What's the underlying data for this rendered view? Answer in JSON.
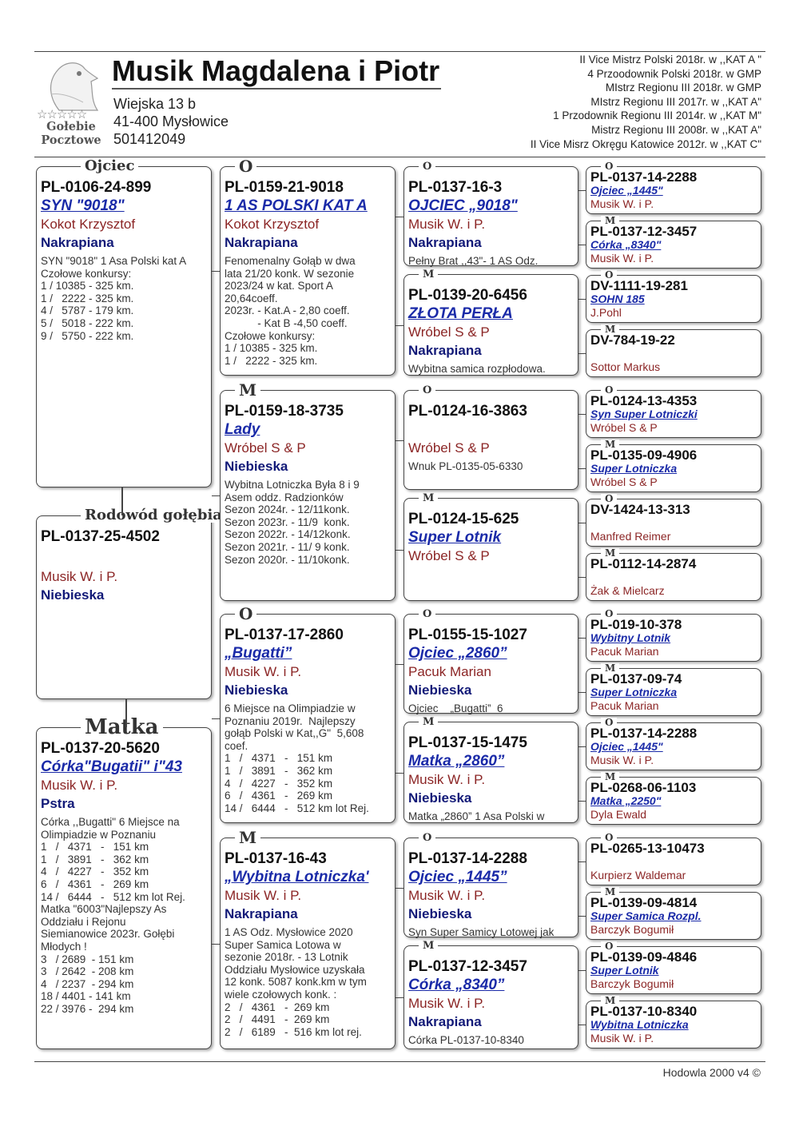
{
  "header": {
    "title": "Musik Magdalena i Piotr",
    "address_line1": "Wiejska 13 b",
    "address_line2": "41-400 Mysłowice",
    "phone": "501412049",
    "logo_text": [
      "Gołebie",
      "Pocztowe"
    ],
    "achievements": [
      "II Vice Mistrz Polski 2018r. w ,,KAT A \"",
      "4 Przoodownik Polski 2018r. w GMP",
      "MIstrz Regionu III 2018r. w GMP",
      "MIstrz Regionu III 2017r. w ,,KAT A\"",
      "1 Przodownik Regionu III 2014r. w ,,KAT M\"",
      "Mistrz Regionu III 2008r. w ,,KAT A\"",
      "II Vice Misrz Okręgu Katowice 2012r. w ,,KAT C\""
    ]
  },
  "pedigree": {
    "gen1": [
      {
        "label": "Ojciec",
        "ring": "PL-0106-24-899",
        "name": "SYN \"9018\"",
        "breeder": "Kokot Krzysztof",
        "color": "Nakrapiana",
        "notes": [
          "SYN \"9018\" 1 Asa Polski kat A",
          "Czołowe konkursy:",
          "1 / 10385 - 325 km.",
          "1 /   2222 - 325 km.",
          "4 /   5787 - 179 km.",
          "5 /   5018 - 222 km.",
          "9 /   5750 - 222 km."
        ]
      },
      {
        "label": "Rodowód gołębia",
        "ring": "PL-0137-25-4502",
        "name": "",
        "breeder": "Musik W. i P.",
        "color": "Niebieska",
        "notes": []
      },
      {
        "label": "Matka",
        "ring": "PL-0137-20-5620",
        "name": "Córka\"Bugatii\" i\"43",
        "breeder": "Musik W. i P.",
        "color": "Pstra",
        "notes": [
          "Córka ,,Bugatti\" 6 Miejsce na",
          "Olimpiadzie w Poznaniu",
          "1   /   4371   -   151 km",
          "1   /   3891   -   362 km",
          "4   /   4227   -   352 km",
          "6   /   4361   -   269 km",
          "14 /   6444   -   512 km lot Rej.",
          "Matka \"6003\"Najlepszy As",
          "Oddziału i Rejonu",
          "Siemianowice 2023r. Gołębi",
          "Młodych !",
          "3   / 2689  - 151 km",
          "3   / 2642  - 208 km",
          "4   / 2237  - 294 km",
          "18 / 4401 - 141 km",
          "22 / 3976 -  294 km"
        ]
      }
    ],
    "gen2": [
      {
        "label": "O",
        "ring": "PL-0159-21-9018",
        "name": "1 AS POLSKI KAT A",
        "breeder": "Kokot Krzysztof",
        "color": "Nakrapiana",
        "notes": [
          "Fenomenalny Gołąb w dwa",
          "lata 21/20 konk. W sezonie",
          "2023/24 w kat. Sport A",
          "20,64coeff.",
          "2023r. - Kat.A - 2,80 coeff.",
          "           - Kat B -4,50 coeff.",
          "Czołowe konkursy:",
          "1 / 10385 - 325 km.",
          "1 /   2222 - 325 km."
        ]
      },
      {
        "label": "M",
        "ring": "PL-0159-18-3735",
        "name": "Lady",
        "breeder": "Wróbel S & P",
        "color": "Niebieska",
        "notes": [
          "Wybitna Lotniczka Była 8 i 9",
          "Asem oddz. Radzionków",
          "Sezon 2024r. - 12/11konk.",
          "Sezon 2023r. - 11/9  konk.",
          "Sezon 2022r. - 14/12konk.",
          "Sezon 2021r. - 11/ 9 konk.",
          "Sezon 2020r. - 11/10konk."
        ]
      },
      {
        "label": "O",
        "ring": "PL-0137-17-2860",
        "name": "„Bugatti”",
        "breeder": "Musik W. i P.",
        "color": "Niebieska",
        "notes": [
          "6 Miejsce na Olimpiadzie w",
          "Poznaniu 2019r.  Najlepszy",
          "gołąb Polski w Kat,,G\"  5,608",
          "coef.",
          "1   /   4371   -   151 km",
          "1   /   3891   -   362 km",
          "4   /   4227   -   352 km",
          "6   /   4361   -   269 km",
          "14 /   6444   -   512 km lot Rej."
        ]
      },
      {
        "label": "M",
        "ring": "PL-0137-16-43",
        "name": "„Wybitna Lotniczka'",
        "breeder": "Musik W. i P.",
        "color": "Nakrapiana",
        "notes": [
          "1 AS Odz. Mysłowice 2020",
          "Super Samica Lotowa w",
          "sezonie 2018r. - 13 Lotnik",
          "Oddziału Mysłowice uzyskała",
          "12 konk. 5087 konk.km w tym",
          "wiele czołowych konk. :",
          "2   /   4361   -  269 km",
          "2   /   4491   -  269 km",
          "2   /   6189   -  516 km lot rej."
        ]
      }
    ],
    "gen3": [
      {
        "label": "O",
        "ring": "PL-0137-16-3",
        "name": "OJCIEC „9018\"",
        "breeder": "Musik W. i P.",
        "color": "Nakrapiana",
        "notes": [
          "Pełny Brat ,,43\"- 1 AS Odz."
        ]
      },
      {
        "label": "M",
        "ring": "PL-0139-20-6456",
        "name": "ZŁOTA PERŁA",
        "breeder": "Wróbel S & P",
        "color": "Nakrapiana",
        "notes": [
          "Wybitna samica rozpłodowa."
        ]
      },
      {
        "label": "O",
        "ring": "PL-0124-16-3863",
        "name": "",
        "breeder": "Wróbel S & P",
        "color": "",
        "notes": [
          "Wnuk PL-0135-05-6330"
        ]
      },
      {
        "label": "M",
        "ring": "PL-0124-15-625",
        "name": "Super Lotnik",
        "breeder": "Wróbel S & P",
        "color": "",
        "notes": []
      },
      {
        "label": "O",
        "ring": "PL-0155-15-1027",
        "name": "Ojciec „2860”",
        "breeder": "Pacuk Marian",
        "color": "Niebieska",
        "notes": [
          "Ojciec    „Bugatti”  6"
        ]
      },
      {
        "label": "M",
        "ring": "PL-0137-15-1475",
        "name": "Matka „2860”",
        "breeder": "Musik W. i P.",
        "color": "Niebieska",
        "notes": [
          "Matka „2860” 1 Asa Polski w"
        ]
      },
      {
        "label": "O",
        "ring": "PL-0137-14-2288",
        "name": "Ojciec „1445”",
        "breeder": "Musik W. i P.",
        "color": "Niebieska",
        "notes": [
          "Syn Super Samicy Lotowej jak"
        ]
      },
      {
        "label": "M",
        "ring": "PL-0137-12-3457",
        "name": "Córka „8340”",
        "breeder": "Musik W. i P.",
        "color": "Nakrapiana",
        "notes": [
          "Córka PL-0137-10-8340"
        ]
      }
    ],
    "gen4": [
      {
        "label": "O",
        "ring": "PL-0137-14-2288",
        "name": "Ojciec „1445\"",
        "breeder": "Musik W. i P."
      },
      {
        "label": "M",
        "ring": "PL-0137-12-3457",
        "name": "Córka „8340\"",
        "breeder": "Musik W. i P."
      },
      {
        "label": "O",
        "ring": "DV-1111-19-281",
        "name": "SOHN 185",
        "breeder": "J.Pohl"
      },
      {
        "label": "M",
        "ring": "DV-784-19-22",
        "name": "",
        "breeder": "Sottor Markus"
      },
      {
        "label": "O",
        "ring": "PL-0124-13-4353",
        "name": "Syn Super Lotniczki",
        "breeder": "Wróbel S & P"
      },
      {
        "label": "M",
        "ring": "PL-0135-09-4906",
        "name": "Super Lotniczka",
        "breeder": "Wróbel S & P"
      },
      {
        "label": "O",
        "ring": "DV-1424-13-313",
        "name": "",
        "breeder": "Manfred Reimer"
      },
      {
        "label": "M",
        "ring": "PL-0112-14-2874",
        "name": "",
        "breeder": "Żak & Mielcarz"
      },
      {
        "label": "O",
        "ring": "PL-019-10-378",
        "name": "Wybitny Lotnik",
        "breeder": "Pacuk Marian"
      },
      {
        "label": "M",
        "ring": "PL-0137-09-74",
        "name": "Super Lotniczka",
        "breeder": "Pacuk Marian"
      },
      {
        "label": "O",
        "ring": "PL-0137-14-2288",
        "name": "Ojciec „1445\"",
        "breeder": "Musik W. i P."
      },
      {
        "label": "M",
        "ring": "PL-0268-06-1103",
        "name": "Matka „2250\"",
        "breeder": "Dyla Ewald"
      },
      {
        "label": "O",
        "ring": "PL-0265-13-10473",
        "name": "",
        "breeder": "Kurpierz Waldemar"
      },
      {
        "label": "M",
        "ring": "PL-0139-09-4814",
        "name": "Super Samica Rozpl.",
        "breeder": "Barczyk Bogumił"
      },
      {
        "label": "O",
        "ring": "PL-0139-09-4846",
        "name": "Super Lotnik",
        "breeder": "Barczyk Bogumił"
      },
      {
        "label": "M",
        "ring": "PL-0137-10-8340",
        "name": "Wybitna Lotniczka",
        "breeder": "Musik W. i P."
      }
    ]
  },
  "footer": {
    "text": "Hodowla 2000 v4 ©"
  },
  "colors": {
    "name": "#1a2aa8",
    "breeder": "#8b2525",
    "color": "#121a78"
  }
}
